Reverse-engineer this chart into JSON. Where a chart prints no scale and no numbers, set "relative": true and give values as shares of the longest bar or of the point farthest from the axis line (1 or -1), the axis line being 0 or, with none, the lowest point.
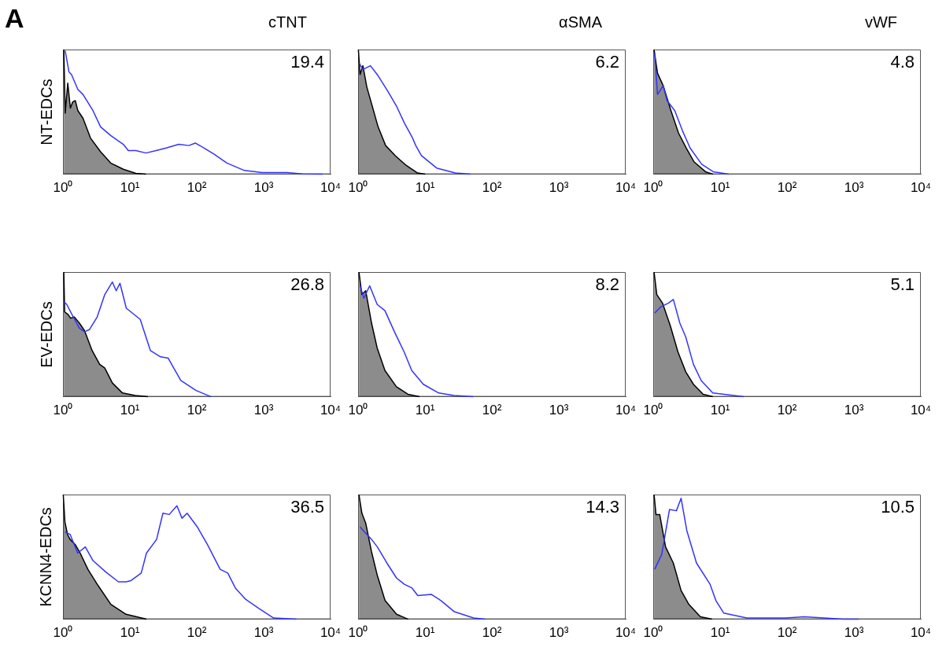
{
  "chart_data": [
    {
      "type": "other",
      "title": "A"
    },
    {
      "type": "area",
      "title": "cTNT",
      "ylabel": "NT-EDCs",
      "relative": true,
      "log": "x",
      "xlim": [
        1,
        10000
      ],
      "xticks": [
        {
          "value": 1,
          "label": "10⁰"
        },
        {
          "value": 10,
          "label": "10¹"
        },
        {
          "value": 100,
          "label": "10²"
        },
        {
          "value": 1000,
          "label": "10³"
        },
        {
          "value": 10000,
          "label": "10⁴"
        }
      ],
      "annotations": [
        "19.4"
      ],
      "series": [
        {
          "type": "area",
          "color": "#000000",
          "x": [
            1.03,
            1.08,
            1.18,
            1.29,
            1.4,
            1.53,
            1.67,
            1.99,
            2.58,
            3.65,
            5.17,
            7.98,
            12.3,
            17.4
          ],
          "values": [
            1.0,
            0.49,
            0.73,
            0.53,
            0.58,
            0.59,
            0.51,
            0.45,
            0.29,
            0.18,
            0.09,
            0.04,
            0.007,
            0
          ]
        },
        {
          "type": "line",
          "color": "#3333ff",
          "x": [
            1.08,
            1.23,
            1.34,
            1.67,
            1.99,
            2.81,
            3.65,
            5.17,
            7.98,
            9.49,
            12.3,
            17.4,
            24.7,
            34.9,
            53.9,
            76.2,
            95.0,
            129,
            182,
            282,
            516,
            950,
            2250,
            3810,
            7600
          ],
          "values": [
            0.99,
            0.82,
            0.8,
            0.68,
            0.64,
            0.51,
            0.38,
            0.31,
            0.24,
            0.19,
            0.19,
            0.17,
            0.19,
            0.21,
            0.24,
            0.23,
            0.25,
            0.21,
            0.16,
            0.09,
            0.03,
            0.013,
            0.013,
            0.002,
            0
          ]
        }
      ]
    },
    {
      "type": "area",
      "title": "αSMA",
      "relative": true,
      "log": "x",
      "xlim": [
        1,
        10000
      ],
      "xticks": [
        {
          "value": 1,
          "label": "10⁰"
        },
        {
          "value": 10,
          "label": "10¹"
        },
        {
          "value": 100,
          "label": "10²"
        },
        {
          "value": 1000,
          "label": "10³"
        },
        {
          "value": 10000,
          "label": "10⁴"
        }
      ],
      "annotations": [
        "6.2"
      ],
      "series": [
        {
          "type": "area",
          "color": "#000000",
          "x": [
            1.01,
            1.07,
            1.18,
            1.35,
            1.64,
            1.99,
            2.58,
            3.57,
            5.26,
            7.76,
            10.1
          ],
          "values": [
            1.0,
            0.8,
            0.87,
            0.7,
            0.54,
            0.38,
            0.23,
            0.15,
            0.07,
            0.01,
            0
          ]
        },
        {
          "type": "line",
          "color": "#3333ff",
          "x": [
            1.04,
            1.18,
            1.53,
            1.99,
            2.75,
            3.8,
            4.93,
            6.39,
            7.28,
            8.84,
            14.9,
            28.4,
            47.8
          ],
          "values": [
            0.89,
            0.84,
            0.87,
            0.79,
            0.67,
            0.54,
            0.41,
            0.3,
            0.23,
            0.15,
            0.05,
            0.01,
            0
          ]
        }
      ]
    },
    {
      "type": "area",
      "title": "vWF",
      "relative": true,
      "log": "x",
      "xlim": [
        1,
        10000
      ],
      "xticks": [
        {
          "value": 1,
          "label": "10⁰"
        },
        {
          "value": 10,
          "label": "10¹"
        },
        {
          "value": 100,
          "label": "10²"
        },
        {
          "value": 1000,
          "label": "10³"
        },
        {
          "value": 10000,
          "label": "10⁴"
        }
      ],
      "annotations": [
        "4.8"
      ],
      "series": [
        {
          "type": "area",
          "color": "#000000",
          "x": [
            1.03,
            1.16,
            1.41,
            1.84,
            2.39,
            3.12,
            4.06,
            6.05,
            7.88
          ],
          "values": [
            1.0,
            0.81,
            0.71,
            0.51,
            0.33,
            0.21,
            0.1,
            0.02,
            0
          ]
        },
        {
          "type": "line",
          "color": "#3333ff",
          "x": [
            1.05,
            1.16,
            1.41,
            1.61,
            2.1,
            2.73,
            3.56,
            5.3,
            7.88,
            13.4
          ],
          "values": [
            0.97,
            0.64,
            0.71,
            0.59,
            0.51,
            0.35,
            0.21,
            0.08,
            0.02,
            0
          ]
        }
      ]
    },
    {
      "type": "area",
      "ylabel": "EV-EDCs",
      "relative": true,
      "log": "x",
      "xlim": [
        1,
        10000
      ],
      "xticks": [
        {
          "value": 1,
          "label": "10⁰"
        },
        {
          "value": 10,
          "label": "10¹"
        },
        {
          "value": 100,
          "label": "10²"
        },
        {
          "value": 1000,
          "label": "10³"
        },
        {
          "value": 10000,
          "label": "10⁴"
        }
      ],
      "annotations": [
        "26.8"
      ],
      "series": [
        {
          "type": "area",
          "color": "#000000",
          "x": [
            1.03,
            1.06,
            1.19,
            1.3,
            1.48,
            1.76,
            2.1,
            2.73,
            3.54,
            4.22,
            5.48,
            7.76,
            12.0,
            18.6
          ],
          "values": [
            1.0,
            0.68,
            0.66,
            0.63,
            0.64,
            0.59,
            0.53,
            0.37,
            0.26,
            0.23,
            0.11,
            0.03,
            0.01,
            0
          ]
        },
        {
          "type": "line",
          "color": "#3333ff",
          "x": [
            1.04,
            1.14,
            1.36,
            1.76,
            2.1,
            2.5,
            3.25,
            4.22,
            5.48,
            6.24,
            7.11,
            8.85,
            14.3,
            20.3,
            28.7,
            37.3,
            57.7,
            97.5,
            164
          ],
          "values": [
            0.76,
            0.74,
            0.66,
            0.55,
            0.52,
            0.54,
            0.64,
            0.82,
            0.92,
            0.85,
            0.91,
            0.71,
            0.62,
            0.37,
            0.32,
            0.31,
            0.13,
            0.05,
            0
          ]
        }
      ]
    },
    {
      "type": "area",
      "relative": true,
      "log": "x",
      "xlim": [
        1,
        10000
      ],
      "xticks": [
        {
          "value": 1,
          "label": "10⁰"
        },
        {
          "value": 10,
          "label": "10¹"
        },
        {
          "value": 100,
          "label": "10²"
        },
        {
          "value": 1000,
          "label": "10³"
        },
        {
          "value": 10000,
          "label": "10⁴"
        }
      ],
      "annotations": [
        "8.2"
      ],
      "series": [
        {
          "type": "area",
          "color": "#000000",
          "x": [
            1.03,
            1.14,
            1.3,
            1.59,
            1.93,
            2.52,
            3.74,
            5.56,
            8.26
          ],
          "values": [
            1.0,
            0.82,
            0.85,
            0.59,
            0.39,
            0.21,
            0.08,
            0.02,
            0
          ]
        },
        {
          "type": "line",
          "color": "#3333ff",
          "x": [
            1.07,
            1.22,
            1.49,
            1.93,
            2.52,
            3.5,
            4.87,
            6.34,
            9.43,
            16.0,
            27.1,
            52.4
          ],
          "values": [
            0.89,
            0.79,
            0.89,
            0.74,
            0.69,
            0.52,
            0.36,
            0.21,
            0.1,
            0.03,
            0.01,
            0
          ]
        }
      ]
    },
    {
      "type": "area",
      "relative": true,
      "log": "x",
      "xlim": [
        1,
        10000
      ],
      "xticks": [
        {
          "value": 1,
          "label": "10⁰"
        },
        {
          "value": 10,
          "label": "10¹"
        },
        {
          "value": 100,
          "label": "10²"
        },
        {
          "value": 1000,
          "label": "10³"
        },
        {
          "value": 10000,
          "label": "10⁴"
        }
      ],
      "annotations": [
        "5.1"
      ],
      "series": [
        {
          "type": "area",
          "color": "#000000",
          "x": [
            1.03,
            1.13,
            1.38,
            1.8,
            2.34,
            3.06,
            3.99,
            5.57,
            7.76
          ],
          "values": [
            1.0,
            0.82,
            0.75,
            0.57,
            0.36,
            0.2,
            0.1,
            0.02,
            0
          ]
        },
        {
          "type": "line",
          "color": "#3333ff",
          "x": [
            1.05,
            1.29,
            1.68,
            2.0,
            2.5,
            3.06,
            3.99,
            5.21,
            7.76,
            22.5
          ],
          "values": [
            0.67,
            0.72,
            0.75,
            0.78,
            0.59,
            0.48,
            0.26,
            0.13,
            0.03,
            0
          ]
        }
      ]
    },
    {
      "type": "area",
      "ylabel": "KCNN4-EDCs",
      "relative": true,
      "log": "x",
      "xlim": [
        1,
        10000
      ],
      "xticks": [
        {
          "value": 1,
          "label": "10⁰"
        },
        {
          "value": 10,
          "label": "10¹"
        },
        {
          "value": 100,
          "label": "10²"
        },
        {
          "value": 1000,
          "label": "10³"
        },
        {
          "value": 10000,
          "label": "10⁴"
        }
      ],
      "annotations": [
        "36.5"
      ],
      "series": [
        {
          "type": "area",
          "color": "#000000",
          "x": [
            1.01,
            1.07,
            1.17,
            1.28,
            1.52,
            1.81,
            2.36,
            3.35,
            5.19,
            8.77,
            17.7
          ],
          "values": [
            1.0,
            0.78,
            0.68,
            0.64,
            0.6,
            0.53,
            0.4,
            0.27,
            0.12,
            0.04,
            0
          ]
        },
        {
          "type": "line",
          "color": "#3333ff",
          "x": [
            1.07,
            1.28,
            1.66,
            2.16,
            2.81,
            4.35,
            6.74,
            8.77,
            10.4,
            14.8,
            17.7,
            25.1,
            31.2,
            38.8,
            50.5,
            60.2,
            71.8,
            102,
            144,
            224,
            291,
            378,
            537,
            832,
            1410,
            3090
          ],
          "values": [
            0.7,
            0.68,
            0.53,
            0.58,
            0.47,
            0.38,
            0.3,
            0.3,
            0.31,
            0.37,
            0.53,
            0.64,
            0.85,
            0.84,
            0.91,
            0.81,
            0.85,
            0.74,
            0.6,
            0.4,
            0.37,
            0.25,
            0.16,
            0.09,
            0.01,
            0
          ]
        }
      ]
    },
    {
      "type": "area",
      "relative": true,
      "log": "x",
      "xlim": [
        1,
        10000
      ],
      "xticks": [
        {
          "value": 1,
          "label": "10⁰"
        },
        {
          "value": 10,
          "label": "10¹"
        },
        {
          "value": 100,
          "label": "10²"
        },
        {
          "value": 1000,
          "label": "10³"
        },
        {
          "value": 10000,
          "label": "10⁴"
        }
      ],
      "annotations": [
        "14.3"
      ],
      "series": [
        {
          "type": "area",
          "color": "#000000",
          "x": [
            1.03,
            1.14,
            1.3,
            1.59,
            1.94,
            2.53,
            3.76,
            5.6
          ],
          "values": [
            1.0,
            0.85,
            0.77,
            0.54,
            0.35,
            0.15,
            0.04,
            0
          ]
        },
        {
          "type": "line",
          "color": "#3333ff",
          "x": [
            1.07,
            1.3,
            1.59,
            1.94,
            2.7,
            3.76,
            4.91,
            6.4,
            7.8,
            12.4,
            17.3,
            27.5,
            53.3,
            79.3
          ],
          "values": [
            0.74,
            0.69,
            0.64,
            0.58,
            0.45,
            0.33,
            0.28,
            0.25,
            0.19,
            0.2,
            0.15,
            0.06,
            0.01,
            0
          ]
        }
      ]
    },
    {
      "type": "area",
      "relative": true,
      "log": "x",
      "xlim": [
        1,
        10000
      ],
      "xticks": [
        {
          "value": 1,
          "label": "10⁰"
        },
        {
          "value": 10,
          "label": "10¹"
        },
        {
          "value": 100,
          "label": "10²"
        },
        {
          "value": 1000,
          "label": "10³"
        },
        {
          "value": 10000,
          "label": "10⁴"
        }
      ],
      "annotations": [
        "10.5"
      ],
      "series": [
        {
          "type": "area",
          "color": "#000000",
          "x": [
            1.03,
            1.1,
            1.25,
            1.53,
            2.0,
            2.61,
            3.4,
            5.07,
            7.56
          ],
          "values": [
            1.0,
            0.84,
            0.84,
            0.58,
            0.45,
            0.23,
            0.12,
            0.02,
            0
          ]
        },
        {
          "type": "line",
          "color": "#3333ff",
          "x": [
            1.05,
            1.34,
            1.75,
            2.22,
            2.61,
            3.18,
            4.44,
            7.08,
            8.64,
            11.3,
            25.1,
            94.8,
            184,
            698,
            1190
          ],
          "values": [
            0.4,
            0.52,
            0.88,
            0.87,
            0.97,
            0.71,
            0.45,
            0.28,
            0.15,
            0.05,
            0.01,
            0.01,
            0.02,
            0,
            0
          ]
        }
      ]
    }
  ]
}
